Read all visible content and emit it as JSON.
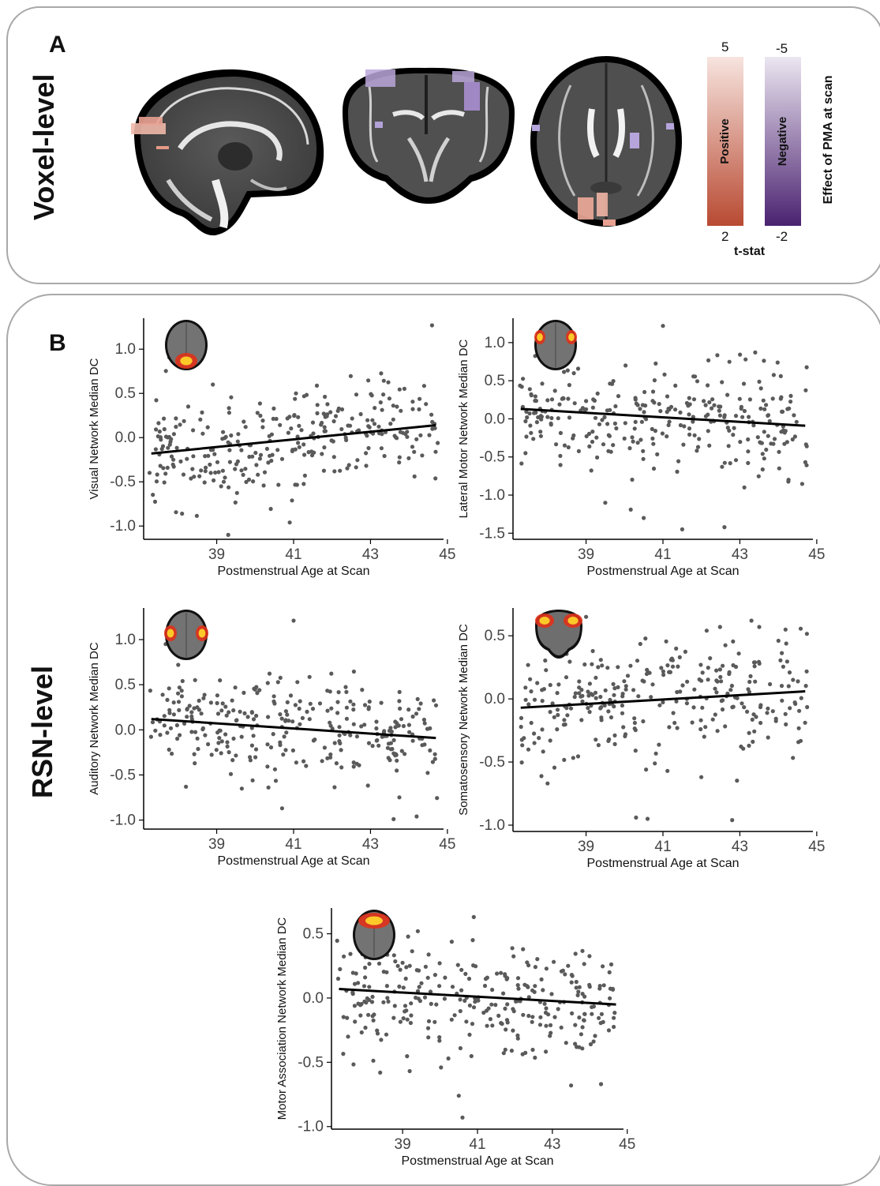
{
  "panel_a": {
    "letter": "A",
    "row_title": "Voxel-level",
    "colorbar_title": "Effect of PMA at scan",
    "colorbar_xlabel": "t-stat",
    "positive": {
      "label": "Positive",
      "top": "5",
      "bottom": "2",
      "color_low": "#b84a32",
      "color_high": "#f7e4df"
    },
    "negative": {
      "label": "Negative",
      "top": "-5",
      "bottom": "-2",
      "color_low": "#4a2270",
      "color_high": "#ece6f1"
    },
    "views": [
      "sagittal",
      "coronal",
      "axial"
    ]
  },
  "panel_b": {
    "letter": "B",
    "row_title": "RSN-level"
  },
  "chart_data": [
    {
      "type": "scatter",
      "title": "",
      "xlabel": "Postmenstrual Age at Scan",
      "ylabel": "Visual Network Median DC",
      "xlim": [
        37.1,
        44.9
      ],
      "ylim": [
        -1.15,
        1.35
      ],
      "xticks": [
        39,
        41,
        43,
        45
      ],
      "yticks": [
        -1.0,
        -0.5,
        0.0,
        0.5,
        1.0
      ],
      "ytick_labels": [
        "-1.0",
        "-0.5",
        "0.0",
        "0.5",
        "1.0"
      ],
      "fit_line": {
        "x": [
          37.3,
          44.7
        ],
        "y": [
          -0.18,
          0.14
        ]
      },
      "point_seed": 11,
      "center": -0.02,
      "slope": 0.043,
      "spread": 0.3,
      "extra_points": [
        [
          44.6,
          1.27
        ],
        [
          39.3,
          -1.1
        ],
        [
          38.1,
          -0.86
        ],
        [
          40.9,
          -0.96
        ],
        [
          38.9,
          0.6
        ]
      ],
      "inset": "axial-visual"
    },
    {
      "type": "scatter",
      "title": "",
      "xlabel": "Postmenstrual Age at Scan",
      "ylabel": "Lateral Motor Network Median DC",
      "xlim": [
        37.1,
        44.9
      ],
      "ylim": [
        -1.58,
        1.32
      ],
      "xticks": [
        39,
        41,
        43,
        45
      ],
      "yticks": [
        -1.5,
        -1.0,
        -0.5,
        0.0,
        0.5,
        1.0
      ],
      "ytick_labels": [
        "-1.5",
        "-1.0",
        "-0.5",
        "0.0",
        "0.5",
        "1.0"
      ],
      "fit_line": {
        "x": [
          37.3,
          44.7
        ],
        "y": [
          0.13,
          -0.09
        ]
      },
      "point_seed": 23,
      "center": 0.02,
      "slope": -0.03,
      "spread": 0.34,
      "extra_points": [
        [
          41.0,
          1.22
        ],
        [
          43.4,
          0.87
        ],
        [
          41.5,
          -1.45
        ],
        [
          42.6,
          -1.42
        ],
        [
          40.5,
          -1.3
        ],
        [
          39.5,
          -1.1
        ]
      ],
      "inset": "axial-motor"
    },
    {
      "type": "scatter",
      "title": "",
      "xlabel": "Postmenstrual Age at Scan",
      "ylabel": "Auditory Network Median DC",
      "xlim": [
        37.1,
        44.9
      ],
      "ylim": [
        -1.1,
        1.35
      ],
      "xticks": [
        39,
        41,
        43,
        45
      ],
      "yticks": [
        -1.0,
        -0.5,
        0.0,
        0.5,
        1.0
      ],
      "ytick_labels": [
        "-1.0",
        "-0.5",
        "0.0",
        "0.5",
        "1.0"
      ],
      "fit_line": {
        "x": [
          37.3,
          44.7
        ],
        "y": [
          0.12,
          -0.09
        ]
      },
      "point_seed": 37,
      "center": 0.01,
      "slope": -0.028,
      "spread": 0.28,
      "extra_points": [
        [
          41.0,
          1.21
        ],
        [
          38.0,
          0.72
        ],
        [
          40.7,
          -0.87
        ],
        [
          43.6,
          -0.99
        ],
        [
          44.2,
          -0.96
        ],
        [
          38.2,
          -0.63
        ]
      ],
      "inset": "axial-auditory"
    },
    {
      "type": "scatter",
      "title": "",
      "xlabel": "Postmenstrual Age at Scan",
      "ylabel": "Somatosensory Network Median DC",
      "xlim": [
        37.1,
        44.9
      ],
      "ylim": [
        -1.05,
        0.72
      ],
      "xticks": [
        39,
        41,
        43,
        45
      ],
      "yticks": [
        -1.0,
        -0.5,
        0.0,
        0.5
      ],
      "ytick_labels": [
        "-1.0",
        "-0.5",
        "0.0",
        "0.5"
      ],
      "fit_line": {
        "x": [
          37.3,
          44.7
        ],
        "y": [
          -0.07,
          0.06
        ]
      },
      "point_seed": 53,
      "center": 0.0,
      "slope": 0.018,
      "spread": 0.24,
      "extra_points": [
        [
          43.3,
          0.62
        ],
        [
          40.6,
          -0.95
        ],
        [
          40.3,
          -0.94
        ],
        [
          42.8,
          -0.96
        ],
        [
          38.0,
          -0.67
        ],
        [
          39.0,
          0.65
        ]
      ],
      "inset": "coronal-somato"
    },
    {
      "type": "scatter",
      "title": "",
      "xlabel": "Postmenstrual Age at Scan",
      "ylabel": "Motor Association Network Median DC",
      "xlim": [
        37.1,
        44.9
      ],
      "ylim": [
        -1.02,
        0.7
      ],
      "xticks": [
        39,
        41,
        43,
        45
      ],
      "yticks": [
        -1.0,
        -0.5,
        0.0,
        0.5
      ],
      "ytick_labels": [
        "-1.0",
        "-0.5",
        "0.0",
        "0.5"
      ],
      "fit_line": {
        "x": [
          37.3,
          44.7
        ],
        "y": [
          0.07,
          -0.05
        ]
      },
      "point_seed": 71,
      "center": 0.0,
      "slope": -0.016,
      "spread": 0.22,
      "extra_points": [
        [
          40.6,
          -0.93
        ],
        [
          40.5,
          -0.76
        ],
        [
          43.5,
          -0.68
        ],
        [
          44.3,
          -0.67
        ],
        [
          38.4,
          -0.58
        ],
        [
          40.9,
          0.63
        ]
      ],
      "inset": "axial-motorassoc"
    }
  ]
}
